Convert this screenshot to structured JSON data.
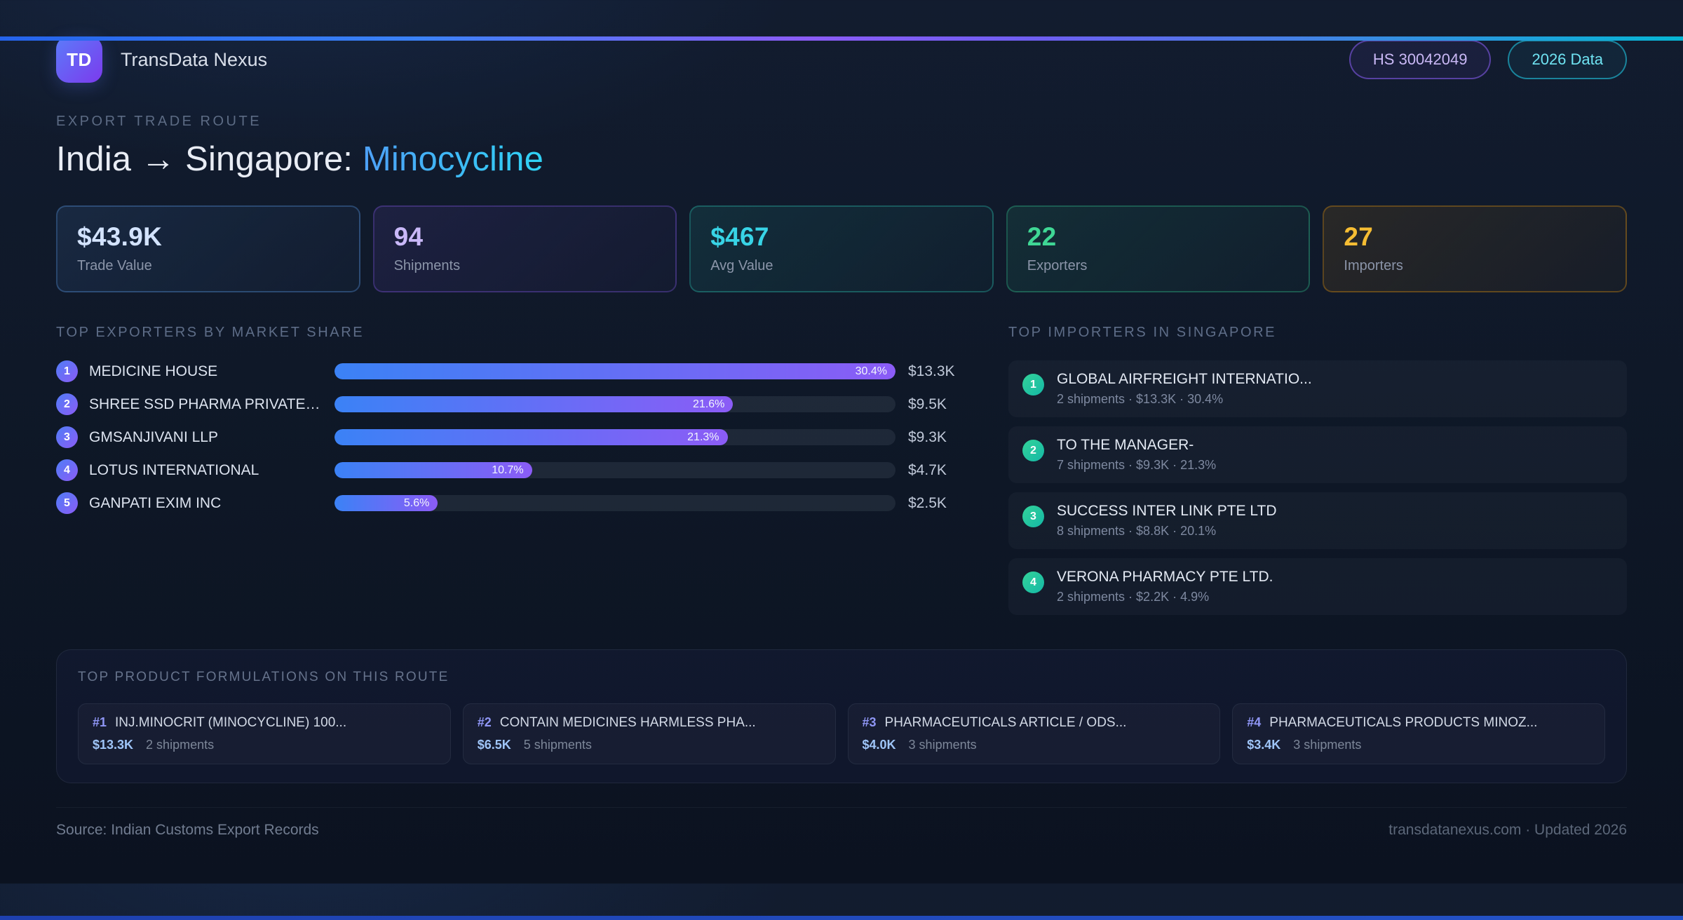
{
  "brand": {
    "logo": "TD",
    "name": "TransData Nexus"
  },
  "badges": {
    "hs_code": "HS 30042049",
    "year": "2026 Data"
  },
  "hero": {
    "eyebrow": "EXPORT TRADE ROUTE",
    "route": "India → Singapore: ",
    "product": "Minocycline"
  },
  "stats": [
    {
      "value": "$43.9K",
      "label": "Trade Value",
      "color": "#d3e3ff",
      "accent": "#60a5fa"
    },
    {
      "value": "94",
      "label": "Shipments",
      "color": "#c9b8f8",
      "accent": "#8b5cf6"
    },
    {
      "value": "$467",
      "label": "Avg Value",
      "color": "#38d4e6",
      "accent": "#2dd4bf"
    },
    {
      "value": "22",
      "label": "Exporters",
      "color": "#3fd795",
      "accent": "#34d399"
    },
    {
      "value": "27",
      "label": "Importers",
      "color": "#f6bd33",
      "accent": "#f59e0b"
    }
  ],
  "exporters": {
    "title": "TOP EXPORTERS BY MARKET SHARE",
    "max_pct": 30.4,
    "items": [
      {
        "rank": 1,
        "name": "MEDICINE HOUSE",
        "pct": 30.4,
        "pct_label": "30.4%",
        "value": "$13.3K"
      },
      {
        "rank": 2,
        "name": "SHREE SSD PHARMA PRIVATE L...",
        "pct": 21.6,
        "pct_label": "21.6%",
        "value": "$9.5K"
      },
      {
        "rank": 3,
        "name": "GMSANJIVANI LLP",
        "pct": 21.3,
        "pct_label": "21.3%",
        "value": "$9.3K"
      },
      {
        "rank": 4,
        "name": "LOTUS INTERNATIONAL",
        "pct": 10.7,
        "pct_label": "10.7%",
        "value": "$4.7K"
      },
      {
        "rank": 5,
        "name": "GANPATI EXIM INC",
        "pct": 5.6,
        "pct_label": "5.6%",
        "value": "$2.5K"
      }
    ]
  },
  "importers": {
    "title": "TOP IMPORTERS IN SINGAPORE",
    "items": [
      {
        "rank": 1,
        "name": "GLOBAL AIRFREIGHT INTERNATIO...",
        "meta": "2 shipments · $13.3K · 30.4%"
      },
      {
        "rank": 2,
        "name": "TO THE MANAGER-",
        "meta": "7 shipments · $9.3K · 21.3%"
      },
      {
        "rank": 3,
        "name": "SUCCESS INTER LINK PTE LTD",
        "meta": "8 shipments · $8.8K · 20.1%"
      },
      {
        "rank": 4,
        "name": "VERONA PHARMACY PTE LTD.",
        "meta": "2 shipments · $2.2K · 4.9%"
      }
    ]
  },
  "formulations": {
    "title": "TOP PRODUCT FORMULATIONS ON THIS ROUTE",
    "items": [
      {
        "rank": "#1",
        "name": "INJ.MINOCRIT (MINOCYCLINE) 100...",
        "value": "$13.3K",
        "shipments": "2 shipments"
      },
      {
        "rank": "#2",
        "name": "CONTAIN MEDICINES HARMLESS PHA...",
        "value": "$6.5K",
        "shipments": "5 shipments"
      },
      {
        "rank": "#3",
        "name": "PHARMACEUTICALS ARTICLE / ODS...",
        "value": "$4.0K",
        "shipments": "3 shipments"
      },
      {
        "rank": "#4",
        "name": "PHARMACEUTICALS PRODUCTS MINOZ...",
        "value": "$3.4K",
        "shipments": "3 shipments"
      }
    ]
  },
  "footer": {
    "source": "Source: Indian Customs Export Records",
    "site": "transdatanexus.com · Updated 2026"
  }
}
